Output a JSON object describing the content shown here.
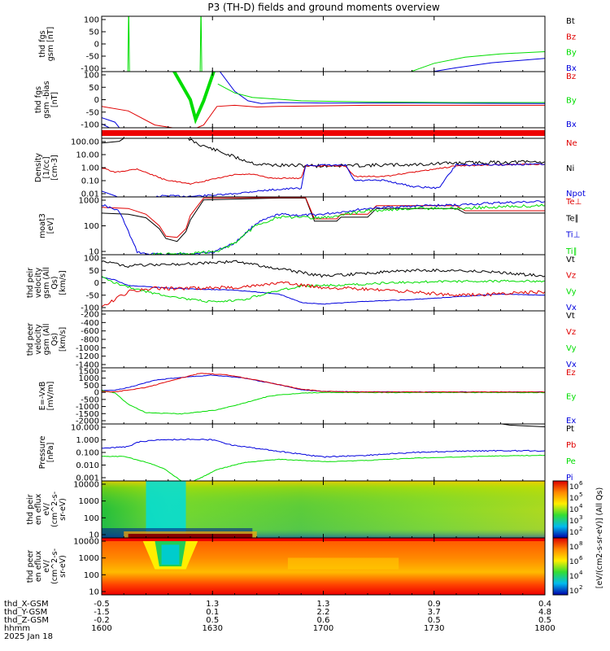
{
  "chart_data": {
    "type": "line",
    "title": "P3 (TH-D) fields and ground moments overview",
    "colors": {
      "black": "#000000",
      "red": "#e00000",
      "green": "#00dd00",
      "blue": "#0000dd"
    },
    "x": {
      "ticks": [
        1600,
        1630,
        1700,
        1730,
        1800
      ],
      "range": [
        1600,
        1800
      ]
    },
    "footer": {
      "row_labels": [
        "thd_X-GSM",
        "thd_Y-GSM",
        "thd_Z-GSM",
        "hhmm",
        "2025 Jan 18"
      ],
      "columns": [
        [
          "-0.5",
          "-1.5",
          "-0.2",
          "1600"
        ],
        [
          "1.3",
          "0.1",
          "0.5",
          "1630"
        ],
        [
          "1.3",
          "2.2",
          "0.6",
          "1700"
        ],
        [
          "0.9",
          "3.7",
          "0.5",
          "1730"
        ],
        [
          "0.4",
          "4.8",
          "0.5",
          "1800"
        ]
      ]
    },
    "panels": [
      {
        "ylabel": "thd fgs gsm [nT]",
        "yticks": [
          "100",
          "50",
          "0",
          "-50",
          "-100"
        ],
        "legend": [
          "Bt",
          "Bz",
          "By",
          "Bx"
        ]
      },
      {
        "ylabel": "thd fgs gsm -bias [nT]",
        "yticks": [
          "100",
          "50",
          "0",
          "-50",
          "-100"
        ],
        "legend": [
          "Bz",
          "By",
          "Bx"
        ]
      },
      {
        "ylabel": "",
        "yticks": [],
        "legend": []
      },
      {
        "ylabel": "Density [1/cc] [cm-3]",
        "yticks": [
          "100.00",
          "10.00",
          "1.00",
          "0.10",
          "0.01"
        ],
        "legend": [
          "Ne",
          "Ni",
          "Npot"
        ],
        "scale": "log"
      },
      {
        "ylabel": "moat3 [eV]",
        "yticks": [
          "1000",
          "100",
          "10"
        ],
        "legend": [
          "Te⊥",
          "Te∥",
          "Ti⊥",
          "Ti∥"
        ],
        "scale": "log"
      },
      {
        "ylabel": "thd peir velocity gsm (All Qs) [km/s]",
        "yticks": [
          "100",
          "50",
          "0",
          "-50",
          "-100"
        ],
        "legend": [
          "Vt",
          "Vz",
          "Vy",
          "Vx"
        ]
      },
      {
        "ylabel": "thd peer velocity gsm (All Qs) [km/s]",
        "yticks": [
          "-200",
          "-400",
          "-600",
          "-800",
          "-1000",
          "-1200",
          "-1400"
        ],
        "legend": [
          "Vt",
          "Vz",
          "Vy",
          "Vx"
        ]
      },
      {
        "ylabel": "E=-VxB [mV/m]",
        "yticks": [
          "1500",
          "1000",
          "500",
          "0",
          "-500",
          "-1000",
          "-1500",
          "-2000"
        ],
        "legend": [
          "Ez",
          "Ey",
          "Ex"
        ]
      },
      {
        "ylabel": "Pressure [nPa]",
        "yticks": [
          "10.000",
          "1.000",
          "0.100",
          "0.010",
          "0.001"
        ],
        "legend": [
          "Pt",
          "Pb",
          "Pe",
          "Pi"
        ],
        "scale": "log"
      },
      {
        "ylabel": "thd peir en eflux eV/ (cm^2-s- sr-eV)",
        "yticks": [
          "10000",
          "1000",
          "100",
          "10"
        ],
        "legend": [],
        "type": "heatmap"
      },
      {
        "ylabel": "thd peer en eflux eV/ (cm^2-s- sr-eV)",
        "yticks": [
          "10000",
          "1000",
          "100",
          "10"
        ],
        "legend": [],
        "type": "heatmap"
      }
    ],
    "colorbar": {
      "label": "[eV/(cm2-s-sr-eV)] (All Qs)",
      "upper_ticks": [
        "10",
        "10",
        "10",
        "10",
        "10"
      ],
      "upper_exps": [
        "6",
        "5",
        "4",
        "3",
        "2"
      ],
      "lower_ticks": [
        "10",
        "10",
        "10",
        "10"
      ],
      "lower_exps": [
        "8",
        "6",
        "4",
        "2"
      ]
    }
  }
}
